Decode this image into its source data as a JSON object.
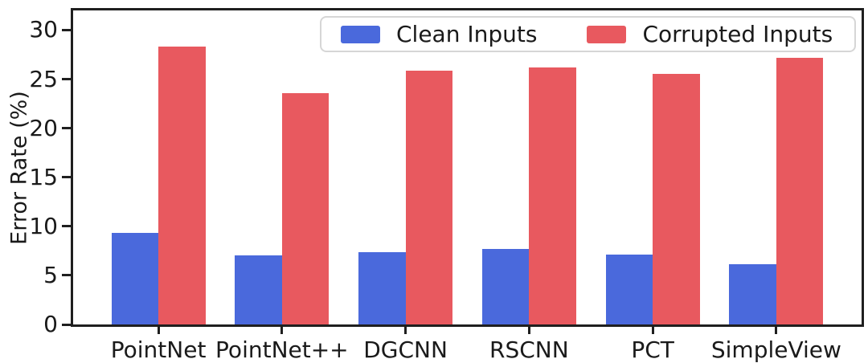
{
  "chart_data": {
    "type": "bar",
    "title": "",
    "xlabel": "",
    "ylabel": "Error Rate (%)",
    "categories": [
      "PointNet",
      "PointNet++",
      "DGCNN",
      "RSCNN",
      "PCT",
      "SimpleView"
    ],
    "series": [
      {
        "name": "Clean Inputs",
        "color": "#4A69DC",
        "values": [
          9.3,
          7.0,
          7.4,
          7.7,
          7.1,
          6.1
        ]
      },
      {
        "name": "Corrupted Inputs",
        "color": "#E8595F",
        "values": [
          28.3,
          23.6,
          25.9,
          26.2,
          25.5,
          27.2
        ]
      }
    ],
    "ylim": [
      0,
      32
    ],
    "yticks": [
      0,
      5,
      10,
      15,
      20,
      25,
      30
    ],
    "grid": false,
    "legend_position": "upper right, horizontal"
  },
  "colors": {
    "spine": "#1f1f1f",
    "text": "#1a1a1a",
    "legend_border": "#d6d6d6",
    "background": "#ffffff"
  }
}
